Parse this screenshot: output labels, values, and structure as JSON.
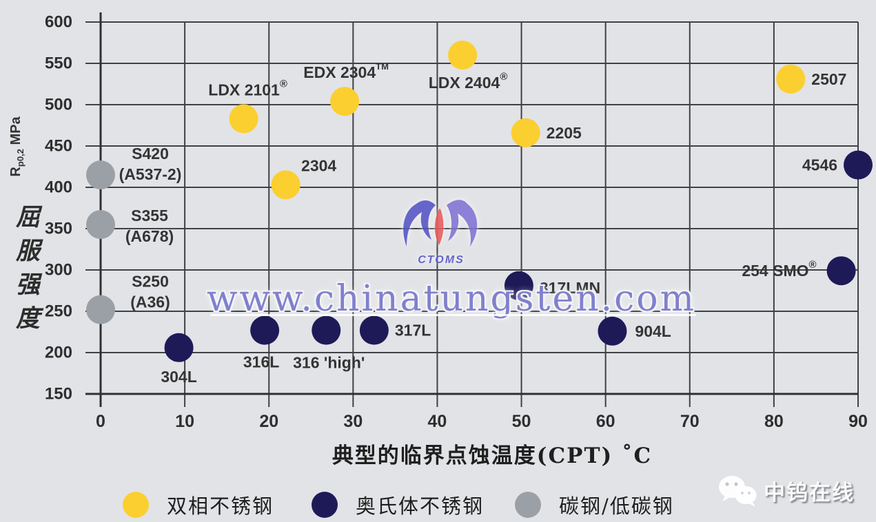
{
  "watermark": {
    "url_text": "www.chinatungsten.com",
    "logo_text": "CTOMS"
  },
  "badge": {
    "text": "中钨在线",
    "icon": "wechat-icon"
  },
  "chart_data": {
    "type": "scatter",
    "title": "",
    "xlabel": "典型的临界点蚀温度(CPT) ˚C",
    "ylabel": "屈服强度",
    "ylabel_unit_parts": {
      "r": "R",
      "sub": "p0,2",
      "rest": " MPa"
    },
    "xlim": [
      0,
      90
    ],
    "ylim": [
      150,
      600
    ],
    "xticks": [
      0,
      10,
      20,
      30,
      40,
      50,
      60,
      70,
      80,
      90
    ],
    "yticks": [
      150,
      200,
      250,
      300,
      350,
      400,
      450,
      500,
      550,
      600
    ],
    "grid": true,
    "legend_position": "bottom",
    "colors": {
      "grid": "#3f4145",
      "axis": "#2f3033",
      "point_label": "#343434",
      "tick_label": "#2e2e2e"
    },
    "series": [
      {
        "name": "双相不锈钢",
        "color": "#fbcf2f",
        "points": [
          {
            "label": "LDX 2101",
            "sup": "®",
            "cpt": 17,
            "mpa": 483,
            "anchor": "above",
            "dx": 6
          },
          {
            "label": "2304",
            "cpt": 22,
            "mpa": 403,
            "anchor": "above",
            "dx": 48,
            "dy": 14
          },
          {
            "label": "EDX 2304",
            "sup": "TM",
            "cpt": 29,
            "mpa": 504,
            "anchor": "above",
            "dx": 2
          },
          {
            "label": "LDX 2404",
            "sup": "®",
            "cpt": 43,
            "mpa": 560,
            "anchor": "below",
            "dx": 8,
            "dy": -5
          },
          {
            "label": "2205",
            "cpt": 50.5,
            "mpa": 466,
            "anchor": "right"
          },
          {
            "label": "2507",
            "cpt": 82,
            "mpa": 531,
            "anchor": "right"
          }
        ]
      },
      {
        "name": "奥氏体不锈钢",
        "color": "#1e1a58",
        "points": [
          {
            "label": "304L",
            "cpt": 9.3,
            "mpa": 206,
            "anchor": "below",
            "dy": -3
          },
          {
            "label": "316L",
            "cpt": 19.5,
            "mpa": 227,
            "anchor": "below",
            "dx": -5,
            "dy": 1
          },
          {
            "label": "316 'high'",
            "cpt": 26.8,
            "mpa": 227,
            "anchor": "below",
            "dx": 4,
            "dy": 2
          },
          {
            "label": "317L",
            "cpt": 32.5,
            "mpa": 227,
            "anchor": "right"
          },
          {
            "label": "317LMN",
            "cpt": 49.7,
            "mpa": 281,
            "anchor": "right",
            "dy": 3
          },
          {
            "label": "904L",
            "cpt": 60.8,
            "mpa": 226,
            "anchor": "right",
            "dx": 3
          },
          {
            "label": "254 SMO",
            "sup": "®",
            "cpt": 88,
            "mpa": 299,
            "anchor": "left",
            "dx": -6
          },
          {
            "label": "4546",
            "cpt": 90,
            "mpa": 427,
            "anchor": "left"
          }
        ]
      },
      {
        "name": "碳钢/低碳钢",
        "color": "#9ba0a6",
        "points": [
          {
            "label": "S420",
            "label2": "(A537-2)",
            "cpt": 0,
            "mpa": 415,
            "anchor": "twoline",
            "dx": 72,
            "dy": -16
          },
          {
            "label": "S355",
            "label2": "(A678)",
            "cpt": 0,
            "mpa": 355,
            "anchor": "twoline",
            "dx": 71,
            "dy": 2
          },
          {
            "label": "S250",
            "label2": "(A36)",
            "cpt": 0,
            "mpa": 252,
            "anchor": "twoline",
            "dx": 72,
            "dy": -26
          }
        ]
      }
    ]
  }
}
